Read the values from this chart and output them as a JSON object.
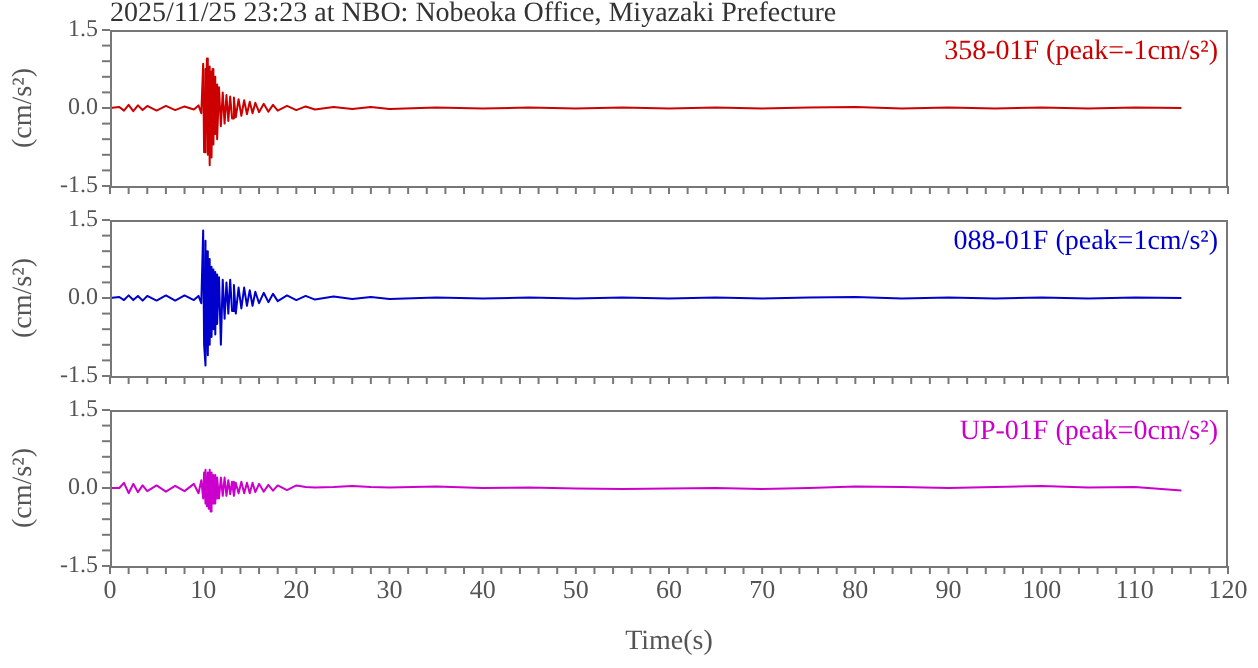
{
  "chart_data": [
    {
      "type": "line",
      "title": "2025/11/25 23:23 at NBO: Nobeoka Office, Miyazaki Prefecture",
      "ylabel": "(cm/s²)",
      "annotations": [
        "358-01F (peak=-1cm/s²)"
      ],
      "tick_labels": "y",
      "marker": "none",
      "line_style": "solid",
      "x": [
        0,
        1,
        1.5,
        2,
        2.5,
        3,
        3.5,
        4,
        5,
        6,
        7,
        8,
        9,
        9.5,
        9.8,
        10,
        10.1,
        10.2,
        10.3,
        10.4,
        10.5,
        10.6,
        10.7,
        10.8,
        10.9,
        11,
        11.1,
        11.2,
        11.3,
        11.4,
        11.5,
        11.7,
        11.9,
        12.1,
        12.3,
        12.5,
        12.7,
        12.9,
        13.1,
        13.3,
        13.5,
        13.8,
        14.1,
        14.4,
        14.7,
        15,
        15.3,
        15.6,
        16,
        16.5,
        17,
        17.5,
        18,
        19,
        20,
        21,
        22,
        24,
        26,
        28,
        30,
        35,
        40,
        45,
        50,
        55,
        60,
        65,
        70,
        75,
        80,
        85,
        90,
        95,
        100,
        105,
        110,
        115
      ],
      "series": [
        {
          "color": "#cc0000",
          "values": [
            0,
            0.02,
            -0.05,
            0.06,
            -0.06,
            0.05,
            -0.04,
            0.04,
            -0.05,
            0.04,
            -0.04,
            0.03,
            -0.03,
            0.05,
            -0.1,
            0.85,
            -0.85,
            0.75,
            -0.6,
            0.95,
            -0.9,
            0.8,
            -1.1,
            0.7,
            -0.95,
            0.75,
            -0.7,
            0.6,
            -0.5,
            0.45,
            -0.6,
            0.4,
            -0.35,
            0.3,
            -0.3,
            0.25,
            -0.25,
            0.22,
            -0.2,
            0.2,
            -0.18,
            0.17,
            -0.15,
            0.15,
            -0.12,
            0.12,
            -0.1,
            0.1,
            -0.08,
            0.08,
            -0.07,
            0.06,
            -0.05,
            0.04,
            -0.04,
            0.03,
            -0.03,
            0.02,
            -0.02,
            0.02,
            -0.02,
            0.01,
            -0.01,
            0.01,
            -0.01,
            0.01,
            -0.01,
            0.01,
            -0.01,
            0.01,
            0.02,
            -0.01,
            0.01,
            -0.01,
            0.01,
            -0.01,
            0.01,
            0
          ]
        }
      ],
      "xlim": [
        0,
        120
      ],
      "xticks": [
        0,
        {
          "value": 2,
          "label": null
        },
        {
          "value": 4,
          "label": null
        },
        {
          "value": 6,
          "label": null
        },
        {
          "value": 8,
          "label": null
        },
        10,
        {
          "value": 12,
          "label": null
        },
        {
          "value": 14,
          "label": null
        },
        {
          "value": 16,
          "label": null
        },
        {
          "value": 18,
          "label": null
        },
        20,
        {
          "value": 22,
          "label": null
        },
        {
          "value": 24,
          "label": null
        },
        {
          "value": 26,
          "label": null
        },
        {
          "value": 28,
          "label": null
        },
        30,
        {
          "value": 32,
          "label": null
        },
        {
          "value": 34,
          "label": null
        },
        {
          "value": 36,
          "label": null
        },
        {
          "value": 38,
          "label": null
        },
        40,
        {
          "value": 42,
          "label": null
        },
        {
          "value": 44,
          "label": null
        },
        {
          "value": 46,
          "label": null
        },
        {
          "value": 48,
          "label": null
        },
        50,
        {
          "value": 52,
          "label": null
        },
        {
          "value": 54,
          "label": null
        },
        {
          "value": 56,
          "label": null
        },
        {
          "value": 58,
          "label": null
        },
        60,
        {
          "value": 62,
          "label": null
        },
        {
          "value": 64,
          "label": null
        },
        {
          "value": 66,
          "label": null
        },
        {
          "value": 68,
          "label": null
        },
        70,
        {
          "value": 72,
          "label": null
        },
        {
          "value": 74,
          "label": null
        },
        {
          "value": 76,
          "label": null
        },
        {
          "value": 78,
          "label": null
        },
        80,
        {
          "value": 82,
          "label": null
        },
        {
          "value": 84,
          "label": null
        },
        {
          "value": 86,
          "label": null
        },
        {
          "value": 88,
          "label": null
        },
        90,
        {
          "value": 92,
          "label": null
        },
        {
          "value": 94,
          "label": null
        },
        {
          "value": 96,
          "label": null
        },
        {
          "value": 98,
          "label": null
        },
        100,
        {
          "value": 102,
          "label": null
        },
        {
          "value": 104,
          "label": null
        },
        {
          "value": 106,
          "label": null
        },
        {
          "value": 108,
          "label": null
        },
        110,
        {
          "value": 112,
          "label": null
        },
        {
          "value": 114,
          "label": null
        },
        {
          "value": 116,
          "label": null
        },
        {
          "value": 118,
          "label": null
        },
        120
      ],
      "ylim": [
        -1.5,
        1.5
      ],
      "yticks": [
        {
          "value": -1.5,
          "label": "-1.5"
        },
        {
          "value": -1.2,
          "label": null
        },
        {
          "value": -0.9,
          "label": null
        },
        {
          "value": -0.6,
          "label": null
        },
        {
          "value": -0.3,
          "label": null
        },
        {
          "value": 0,
          "label": "0.0"
        },
        {
          "value": 0.3,
          "label": null
        },
        {
          "value": 0.6,
          "label": null
        },
        {
          "value": 0.9,
          "label": null
        },
        {
          "value": 1.2,
          "label": null
        },
        {
          "value": 1.5,
          "label": "1.5"
        }
      ]
    },
    {
      "type": "line",
      "ylabel": "(cm/s²)",
      "annotations": [
        "088-01F (peak=1cm/s²)"
      ],
      "tick_labels": "y",
      "marker": "none",
      "line_style": "solid",
      "x": [
        0,
        1,
        1.5,
        2,
        2.5,
        3,
        3.5,
        4,
        5,
        6,
        7,
        8,
        9,
        9.5,
        9.8,
        10,
        10.1,
        10.2,
        10.3,
        10.4,
        10.5,
        10.6,
        10.7,
        10.8,
        10.9,
        11,
        11.1,
        11.2,
        11.3,
        11.4,
        11.5,
        11.7,
        11.9,
        12.1,
        12.3,
        12.5,
        12.7,
        12.9,
        13.1,
        13.3,
        13.5,
        13.8,
        14.1,
        14.4,
        14.7,
        15,
        15.3,
        15.6,
        16,
        16.5,
        17,
        17.5,
        18,
        19,
        20,
        21,
        22,
        24,
        26,
        28,
        30,
        35,
        40,
        45,
        50,
        55,
        60,
        65,
        70,
        75,
        80,
        85,
        90,
        95,
        100,
        105,
        110,
        115
      ],
      "series": [
        {
          "color": "#0000cc",
          "values": [
            0,
            0.02,
            -0.04,
            0.05,
            -0.04,
            0.04,
            -0.05,
            0.04,
            -0.05,
            0.05,
            -0.05,
            0.05,
            -0.04,
            0.04,
            -0.1,
            1.3,
            -0.9,
            1.1,
            -1.3,
            0.9,
            -1.1,
            0.75,
            -0.9,
            0.6,
            -0.75,
            0.55,
            -0.6,
            0.5,
            -0.7,
            0.45,
            -0.5,
            0.4,
            -0.9,
            0.35,
            -0.4,
            0.3,
            -0.3,
            0.35,
            -0.25,
            0.25,
            -0.3,
            0.2,
            -0.2,
            0.2,
            -0.15,
            0.15,
            -0.15,
            0.12,
            -0.1,
            0.1,
            -0.08,
            0.08,
            -0.06,
            0.05,
            -0.04,
            0.04,
            -0.03,
            0.03,
            -0.02,
            0.02,
            -0.02,
            0.01,
            -0.01,
            0.01,
            -0.01,
            0.01,
            -0.01,
            0.01,
            -0.01,
            0.01,
            0.02,
            -0.01,
            0.01,
            -0.01,
            0.01,
            -0.01,
            0.01,
            0
          ]
        }
      ],
      "xlim": [
        0,
        120
      ],
      "xticks": [
        0,
        {
          "value": 2,
          "label": null
        },
        {
          "value": 4,
          "label": null
        },
        {
          "value": 6,
          "label": null
        },
        {
          "value": 8,
          "label": null
        },
        10,
        {
          "value": 12,
          "label": null
        },
        {
          "value": 14,
          "label": null
        },
        {
          "value": 16,
          "label": null
        },
        {
          "value": 18,
          "label": null
        },
        20,
        {
          "value": 22,
          "label": null
        },
        {
          "value": 24,
          "label": null
        },
        {
          "value": 26,
          "label": null
        },
        {
          "value": 28,
          "label": null
        },
        30,
        {
          "value": 32,
          "label": null
        },
        {
          "value": 34,
          "label": null
        },
        {
          "value": 36,
          "label": null
        },
        {
          "value": 38,
          "label": null
        },
        40,
        {
          "value": 42,
          "label": null
        },
        {
          "value": 44,
          "label": null
        },
        {
          "value": 46,
          "label": null
        },
        {
          "value": 48,
          "label": null
        },
        50,
        {
          "value": 52,
          "label": null
        },
        {
          "value": 54,
          "label": null
        },
        {
          "value": 56,
          "label": null
        },
        {
          "value": 58,
          "label": null
        },
        60,
        {
          "value": 62,
          "label": null
        },
        {
          "value": 64,
          "label": null
        },
        {
          "value": 66,
          "label": null
        },
        {
          "value": 68,
          "label": null
        },
        70,
        {
          "value": 72,
          "label": null
        },
        {
          "value": 74,
          "label": null
        },
        {
          "value": 76,
          "label": null
        },
        {
          "value": 78,
          "label": null
        },
        80,
        {
          "value": 82,
          "label": null
        },
        {
          "value": 84,
          "label": null
        },
        {
          "value": 86,
          "label": null
        },
        {
          "value": 88,
          "label": null
        },
        90,
        {
          "value": 92,
          "label": null
        },
        {
          "value": 94,
          "label": null
        },
        {
          "value": 96,
          "label": null
        },
        {
          "value": 98,
          "label": null
        },
        100,
        {
          "value": 102,
          "label": null
        },
        {
          "value": 104,
          "label": null
        },
        {
          "value": 106,
          "label": null
        },
        {
          "value": 108,
          "label": null
        },
        110,
        {
          "value": 112,
          "label": null
        },
        {
          "value": 114,
          "label": null
        },
        {
          "value": 116,
          "label": null
        },
        {
          "value": 118,
          "label": null
        },
        120
      ],
      "ylim": [
        -1.5,
        1.5
      ],
      "yticks": [
        {
          "value": -1.5,
          "label": "-1.5"
        },
        {
          "value": -1.2,
          "label": null
        },
        {
          "value": -0.9,
          "label": null
        },
        {
          "value": -0.6,
          "label": null
        },
        {
          "value": -0.3,
          "label": null
        },
        {
          "value": 0,
          "label": "0.0"
        },
        {
          "value": 0.3,
          "label": null
        },
        {
          "value": 0.6,
          "label": null
        },
        {
          "value": 0.9,
          "label": null
        },
        {
          "value": 1.2,
          "label": null
        },
        {
          "value": 1.5,
          "label": "1.5"
        }
      ]
    },
    {
      "type": "line",
      "ylabel": "(cm/s²)",
      "xlabel": "Time(s)",
      "annotations": [
        "UP-01F (peak=0cm/s²)"
      ],
      "marker": "none",
      "line_style": "solid",
      "x": [
        0,
        1,
        1.5,
        2,
        2.5,
        3,
        3.5,
        4,
        5,
        6,
        7,
        8,
        9,
        9.5,
        9.8,
        10,
        10.1,
        10.2,
        10.3,
        10.4,
        10.5,
        10.6,
        10.7,
        10.8,
        10.9,
        11,
        11.1,
        11.2,
        11.3,
        11.4,
        11.5,
        11.7,
        11.9,
        12.1,
        12.3,
        12.5,
        12.7,
        12.9,
        13.1,
        13.3,
        13.5,
        13.8,
        14.1,
        14.4,
        14.7,
        15,
        15.3,
        15.6,
        16,
        16.5,
        17,
        17.5,
        18,
        19,
        20,
        21,
        22,
        24,
        26,
        28,
        30,
        35,
        40,
        45,
        50,
        55,
        60,
        65,
        70,
        75,
        80,
        85,
        90,
        95,
        100,
        105,
        110,
        115
      ],
      "series": [
        {
          "color": "#cc00cc",
          "values": [
            0,
            0,
            0.1,
            -0.1,
            0.08,
            -0.08,
            0.05,
            -0.06,
            0.05,
            -0.07,
            0.04,
            -0.06,
            0.08,
            -0.1,
            0.15,
            -0.2,
            0.3,
            -0.3,
            0.35,
            -0.35,
            0.3,
            -0.4,
            0.35,
            -0.45,
            0.3,
            -0.3,
            0.25,
            -0.3,
            0.25,
            -0.2,
            0.2,
            -0.2,
            0.2,
            -0.15,
            0.2,
            -0.15,
            0.15,
            -0.12,
            0.12,
            -0.15,
            0.1,
            -0.1,
            0.12,
            -0.1,
            0.1,
            -0.1,
            0.1,
            -0.08,
            0.08,
            -0.07,
            0.06,
            -0.05,
            0.05,
            -0.04,
            0.05,
            0.02,
            0.01,
            0.02,
            0.04,
            0.02,
            0.01,
            0.03,
            0,
            0.01,
            -0.01,
            -0.02,
            -0.01,
            0,
            -0.02,
            0,
            0.03,
            0.02,
            0,
            0.02,
            0.04,
            0.01,
            0.02,
            -0.05
          ]
        }
      ],
      "xlim": [
        0,
        120
      ],
      "xticks": [
        0,
        {
          "value": 2,
          "label": null
        },
        {
          "value": 4,
          "label": null
        },
        {
          "value": 6,
          "label": null
        },
        {
          "value": 8,
          "label": null
        },
        10,
        {
          "value": 12,
          "label": null
        },
        {
          "value": 14,
          "label": null
        },
        {
          "value": 16,
          "label": null
        },
        {
          "value": 18,
          "label": null
        },
        20,
        {
          "value": 22,
          "label": null
        },
        {
          "value": 24,
          "label": null
        },
        {
          "value": 26,
          "label": null
        },
        {
          "value": 28,
          "label": null
        },
        30,
        {
          "value": 32,
          "label": null
        },
        {
          "value": 34,
          "label": null
        },
        {
          "value": 36,
          "label": null
        },
        {
          "value": 38,
          "label": null
        },
        40,
        {
          "value": 42,
          "label": null
        },
        {
          "value": 44,
          "label": null
        },
        {
          "value": 46,
          "label": null
        },
        {
          "value": 48,
          "label": null
        },
        50,
        {
          "value": 52,
          "label": null
        },
        {
          "value": 54,
          "label": null
        },
        {
          "value": 56,
          "label": null
        },
        {
          "value": 58,
          "label": null
        },
        60,
        {
          "value": 62,
          "label": null
        },
        {
          "value": 64,
          "label": null
        },
        {
          "value": 66,
          "label": null
        },
        {
          "value": 68,
          "label": null
        },
        70,
        {
          "value": 72,
          "label": null
        },
        {
          "value": 74,
          "label": null
        },
        {
          "value": 76,
          "label": null
        },
        {
          "value": 78,
          "label": null
        },
        80,
        {
          "value": 82,
          "label": null
        },
        {
          "value": 84,
          "label": null
        },
        {
          "value": 86,
          "label": null
        },
        {
          "value": 88,
          "label": null
        },
        90,
        {
          "value": 92,
          "label": null
        },
        {
          "value": 94,
          "label": null
        },
        {
          "value": 96,
          "label": null
        },
        {
          "value": 98,
          "label": null
        },
        100,
        {
          "value": 102,
          "label": null
        },
        {
          "value": 104,
          "label": null
        },
        {
          "value": 106,
          "label": null
        },
        {
          "value": 108,
          "label": null
        },
        110,
        {
          "value": 112,
          "label": null
        },
        {
          "value": 114,
          "label": null
        },
        {
          "value": 116,
          "label": null
        },
        {
          "value": 118,
          "label": null
        },
        120
      ],
      "ylim": [
        -1.5,
        1.5
      ],
      "yticks": [
        {
          "value": -1.5,
          "label": "-1.5"
        },
        {
          "value": -1.2,
          "label": null
        },
        {
          "value": -0.9,
          "label": null
        },
        {
          "value": -0.6,
          "label": null
        },
        {
          "value": -0.3,
          "label": null
        },
        {
          "value": 0,
          "label": "0.0"
        },
        {
          "value": 0.3,
          "label": null
        },
        {
          "value": 0.6,
          "label": null
        },
        {
          "value": 0.9,
          "label": null
        },
        {
          "value": 1.2,
          "label": null
        },
        {
          "value": 1.5,
          "label": "1.5"
        }
      ]
    }
  ]
}
